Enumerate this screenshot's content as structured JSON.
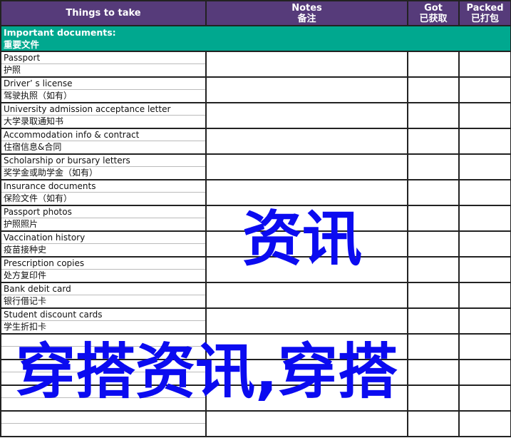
{
  "header": {
    "things": "Things to take",
    "notes_en": "Notes",
    "notes_zh": "备注",
    "got_en": "Got",
    "got_zh": "已获取",
    "packed_en": "Packed",
    "packed_zh": "已打包"
  },
  "section": {
    "en": "Important documents:",
    "zh": "重要文件"
  },
  "items": [
    {
      "en": "Passport",
      "zh": "护照"
    },
    {
      "en": "Driver’ s license",
      "zh": "驾驶执照（如有）"
    },
    {
      "en": "University admission acceptance letter",
      "zh": "大学录取通知书"
    },
    {
      "en": "Accommodation info & contract",
      "zh": "住宿信息&合同"
    },
    {
      "en": "Scholarship or bursary letters",
      "zh": "奖学金或助学金（如有）"
    },
    {
      "en": "Insurance documents",
      "zh": "保险文件（如有）"
    },
    {
      "en": "Passport photos",
      "zh": "护照照片"
    },
    {
      "en": "Vaccination history",
      "zh": "疫苗接种史"
    },
    {
      "en": "Prescription copies",
      "zh": "处方复印件"
    },
    {
      "en": "Bank debit card",
      "zh": "银行借记卡"
    },
    {
      "en": "Student discount cards",
      "zh": "学生折扣卡"
    },
    {
      "en": "",
      "zh": ""
    },
    {
      "en": "",
      "zh": ""
    },
    {
      "en": "",
      "zh": ""
    },
    {
      "en": "",
      "zh": ""
    }
  ],
  "watermark": {
    "line1": "穿搭资讯,穿搭",
    "line2": "资讯"
  },
  "colors": {
    "header": "#563b7a",
    "section": "#00a88f",
    "watermark": "#0b0bf0"
  }
}
